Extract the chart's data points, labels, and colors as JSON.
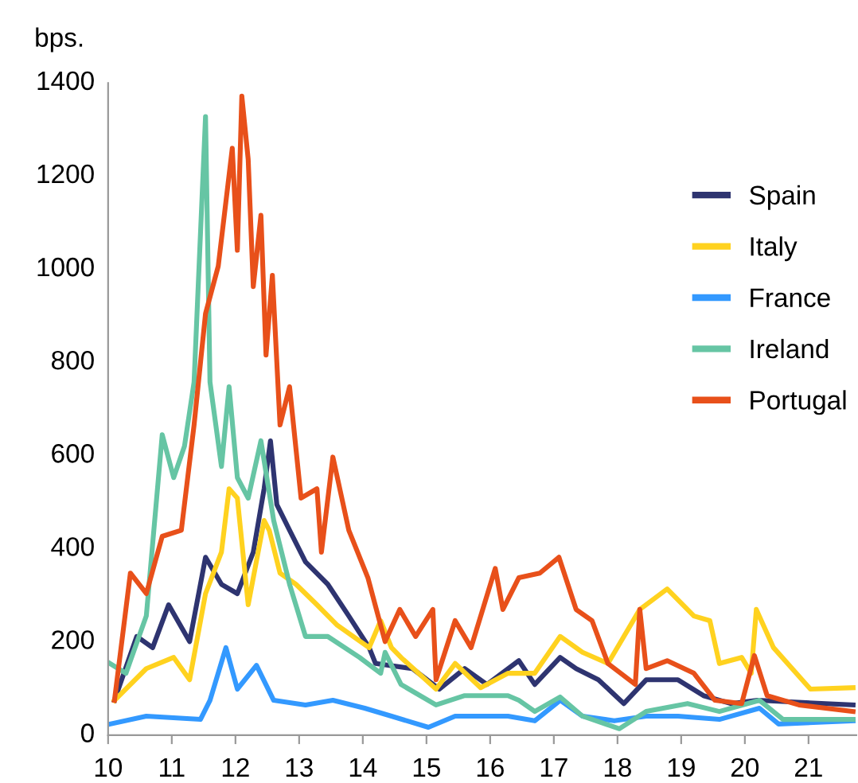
{
  "chart_data": {
    "type": "line",
    "ylabel": "bps.",
    "xlim": [
      10,
      21.75
    ],
    "xticks": [
      {
        "value": 10,
        "label": "10"
      },
      {
        "value": 11,
        "label": "11"
      },
      {
        "value": 12,
        "label": "12"
      },
      {
        "value": 13,
        "label": "13"
      },
      {
        "value": 14,
        "label": "14"
      },
      {
        "value": 15,
        "label": "15"
      },
      {
        "value": 16,
        "label": "16"
      },
      {
        "value": 17,
        "label": "17"
      },
      {
        "value": 18,
        "label": "18"
      },
      {
        "value": 19,
        "label": "19"
      },
      {
        "value": 20,
        "label": "20"
      },
      {
        "value": 21,
        "label": "21"
      }
    ],
    "ylim": [
      0,
      1400
    ],
    "yticks": [
      0,
      200,
      400,
      600,
      800,
      1000,
      1200,
      1400
    ],
    "grid": false,
    "legend": "top right",
    "marker": "none",
    "line_style": "solid",
    "series": [
      {
        "name": "Spain",
        "color": "#2e3470",
        "x": [
          10.1,
          10.45,
          10.7,
          10.95,
          11.28,
          11.53,
          11.78,
          12.03,
          12.28,
          12.45,
          12.55,
          12.65,
          12.85,
          13.1,
          13.45,
          13.78,
          14.1,
          14.2,
          14.78,
          15.2,
          15.6,
          15.95,
          16.45,
          16.7,
          17.1,
          17.35,
          17.7,
          18.1,
          18.45,
          18.95,
          19.35,
          19.78,
          20.2,
          21.7
        ],
        "values": [
          75,
          212,
          188,
          280,
          201,
          382,
          324,
          304,
          393,
          529,
          632,
          495,
          440,
          372,
          324,
          256,
          188,
          154,
          143,
          99,
          143,
          109,
          160,
          109,
          167,
          143,
          119,
          68,
          119,
          119,
          85,
          68,
          75,
          65
        ]
      },
      {
        "name": "Italy",
        "color": "#ffd21f",
        "x": [
          10.1,
          10.6,
          11.03,
          11.28,
          11.53,
          11.78,
          11.9,
          12.03,
          12.2,
          12.45,
          12.53,
          12.7,
          12.95,
          13.28,
          13.6,
          14.1,
          14.28,
          14.45,
          14.6,
          15.15,
          15.45,
          15.85,
          16.28,
          16.7,
          17.1,
          17.45,
          17.85,
          18.35,
          18.78,
          19.2,
          19.45,
          19.6,
          19.95,
          20.1,
          20.18,
          20.45,
          21.03,
          21.7
        ],
        "values": [
          75,
          143,
          167,
          119,
          304,
          393,
          529,
          509,
          280,
          461,
          440,
          348,
          324,
          280,
          236,
          188,
          246,
          188,
          167,
          99,
          154,
          102,
          133,
          133,
          212,
          178,
          154,
          270,
          314,
          256,
          246,
          154,
          167,
          133,
          270,
          188,
          99,
          102
        ]
      },
      {
        "name": "France",
        "color": "#3399ff",
        "x": [
          10.03,
          10.6,
          11.45,
          11.6,
          11.85,
          12.03,
          12.33,
          12.6,
          13.1,
          13.53,
          14.03,
          14.45,
          15.03,
          15.45,
          16.28,
          16.7,
          17.1,
          17.45,
          17.95,
          18.45,
          18.95,
          19.6,
          20.23,
          20.53,
          21.7
        ],
        "values": [
          24,
          41,
          34,
          75,
          188,
          99,
          150,
          75,
          65,
          75,
          58,
          41,
          17,
          41,
          41,
          31,
          75,
          41,
          31,
          41,
          41,
          34,
          58,
          24,
          31
        ]
      },
      {
        "name": "Ireland",
        "color": "#66c5a4",
        "x": [
          10.03,
          10.28,
          10.6,
          10.85,
          11.03,
          11.2,
          11.35,
          11.53,
          11.6,
          11.78,
          11.9,
          12.03,
          12.2,
          12.4,
          12.6,
          12.85,
          13.1,
          13.45,
          13.95,
          14.28,
          14.35,
          14.6,
          15.15,
          15.6,
          16.28,
          16.45,
          16.7,
          17.1,
          17.45,
          18.03,
          18.45,
          19.1,
          19.6,
          20.23,
          20.6,
          21.7
        ],
        "values": [
          154,
          133,
          256,
          645,
          553,
          621,
          758,
          1328,
          758,
          577,
          748,
          553,
          509,
          632,
          461,
          324,
          212,
          212,
          167,
          133,
          178,
          109,
          65,
          85,
          85,
          75,
          51,
          82,
          41,
          14,
          51,
          68,
          51,
          75,
          34,
          34
        ]
      },
      {
        "name": "Portugal",
        "color": "#e8501a",
        "x": [
          10.1,
          10.35,
          10.6,
          10.85,
          11.15,
          11.35,
          11.53,
          11.73,
          11.95,
          12.03,
          12.1,
          12.2,
          12.28,
          12.4,
          12.48,
          12.58,
          12.7,
          12.85,
          13.03,
          13.28,
          13.35,
          13.53,
          13.78,
          14.08,
          14.28,
          14.35,
          14.58,
          14.83,
          15.1,
          15.15,
          15.45,
          15.7,
          16.08,
          16.2,
          16.45,
          16.78,
          17.08,
          17.35,
          17.6,
          17.85,
          18.28,
          18.35,
          18.45,
          18.78,
          19.2,
          19.53,
          19.95,
          20.15,
          20.35,
          20.85,
          21.7
        ],
        "values": [
          75,
          348,
          304,
          427,
          440,
          666,
          905,
          1007,
          1260,
          1041,
          1372,
          1236,
          963,
          1116,
          816,
          987,
          666,
          748,
          509,
          529,
          393,
          597,
          440,
          338,
          236,
          201,
          270,
          212,
          270,
          119,
          246,
          188,
          358,
          270,
          338,
          348,
          382,
          270,
          246,
          154,
          109,
          270,
          143,
          160,
          133,
          75,
          68,
          171,
          85,
          65,
          51
        ]
      }
    ]
  }
}
